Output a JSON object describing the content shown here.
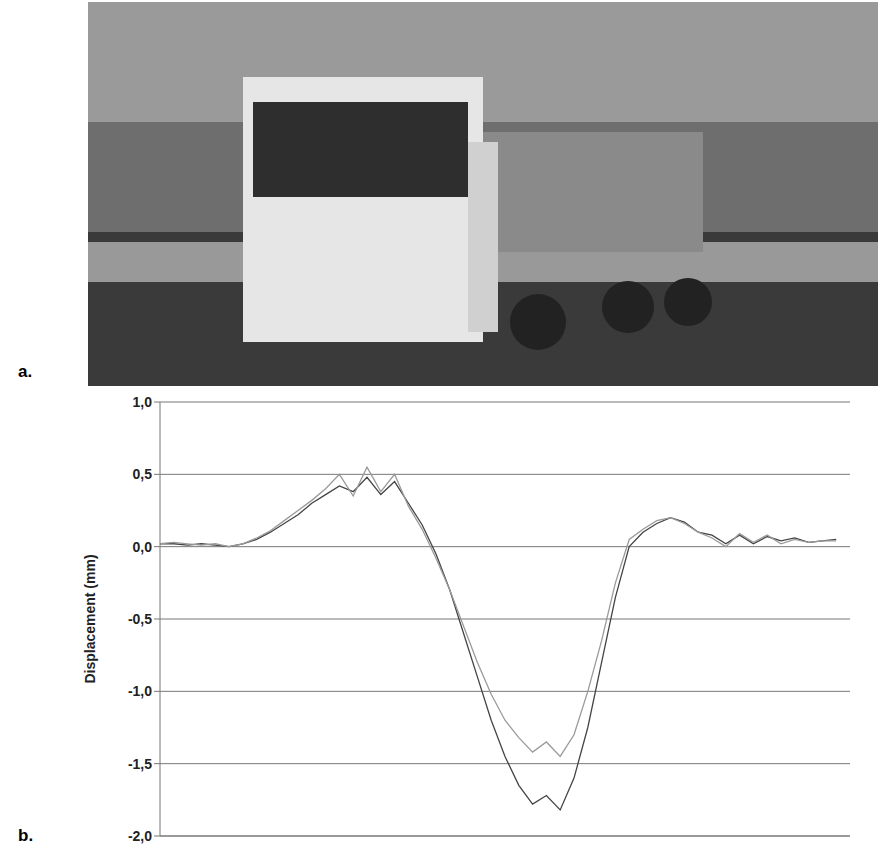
{
  "panels": [
    "a.",
    "b."
  ],
  "chart_data": {
    "type": "line",
    "y_label": "Displacement (mm)",
    "x": [
      0,
      2,
      4,
      6,
      8,
      10,
      12,
      14,
      16,
      18,
      20,
      22,
      24,
      26,
      28,
      30,
      32,
      34,
      36,
      38,
      40,
      42,
      44,
      46,
      48,
      50,
      52,
      54,
      56,
      58,
      60,
      62,
      64,
      66,
      68,
      70,
      72,
      74,
      76,
      78,
      80,
      82,
      84,
      86,
      88,
      90,
      92,
      94,
      96,
      98
    ],
    "series": [
      {
        "color": "#444444",
        "values": [
          0.02,
          0.02,
          0.01,
          0.02,
          0.01,
          0.0,
          0.02,
          0.05,
          0.1,
          0.16,
          0.22,
          0.3,
          0.36,
          0.42,
          0.38,
          0.48,
          0.36,
          0.45,
          0.3,
          0.15,
          -0.05,
          -0.3,
          -0.6,
          -0.9,
          -1.2,
          -1.45,
          -1.65,
          -1.78,
          -1.72,
          -1.82,
          -1.6,
          -1.25,
          -0.8,
          -0.35,
          0.0,
          0.1,
          0.16,
          0.2,
          0.17,
          0.1,
          0.08,
          0.02,
          0.08,
          0.02,
          0.07,
          0.04,
          0.06,
          0.03,
          0.04,
          0.05
        ]
      },
      {
        "color": "#9a9a9a",
        "values": [
          0.02,
          0.03,
          0.02,
          0.01,
          0.02,
          0.0,
          0.02,
          0.06,
          0.11,
          0.18,
          0.25,
          0.32,
          0.4,
          0.5,
          0.35,
          0.55,
          0.38,
          0.5,
          0.28,
          0.12,
          -0.08,
          -0.3,
          -0.55,
          -0.8,
          -1.02,
          -1.2,
          -1.32,
          -1.42,
          -1.35,
          -1.45,
          -1.3,
          -1.0,
          -0.65,
          -0.25,
          0.05,
          0.12,
          0.18,
          0.2,
          0.16,
          0.1,
          0.06,
          0.0,
          0.09,
          0.03,
          0.08,
          0.02,
          0.05,
          0.03,
          0.04,
          0.04
        ]
      }
    ],
    "xlim": [
      0,
      100
    ],
    "ylim": [
      -2,
      1
    ],
    "yticks": [
      {
        "value": 1,
        "label": "1,0"
      },
      {
        "value": 0.5,
        "label": "0,5"
      },
      {
        "value": 0,
        "label": "0,0"
      },
      {
        "value": -0.5,
        "label": "-0,5"
      },
      {
        "value": -1,
        "label": "-1,0"
      },
      {
        "value": -1.5,
        "label": "-1,5"
      },
      {
        "value": -2,
        "label": "-2,0"
      }
    ],
    "grid": true,
    "tick_labels": "y"
  }
}
